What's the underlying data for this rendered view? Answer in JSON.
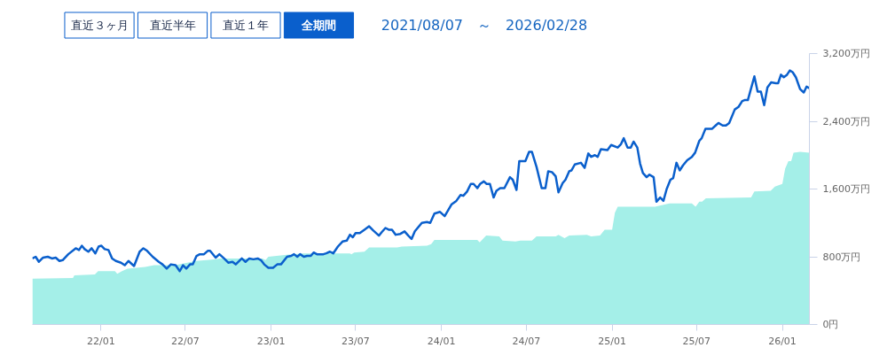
{
  "chart_data": {
    "type": "area",
    "title": "2021/08/07　～　2026/02/28",
    "annotations": [
      "直近３ヶ月",
      "直近半年",
      "直近１年",
      "全期間"
    ],
    "xlim": [
      "2021-08-07",
      "2026-02-28"
    ],
    "xticks": [
      {
        "value": "2022-01-01",
        "label": "22/01"
      },
      {
        "value": "2022-07-01",
        "label": "22/07"
      },
      {
        "value": "2023-01-01",
        "label": "23/01"
      },
      {
        "value": "2023-07-01",
        "label": "23/07"
      },
      {
        "value": "2024-01-01",
        "label": "24/01"
      },
      {
        "value": "2024-07-01",
        "label": "24/07"
      },
      {
        "value": "2025-01-01",
        "label": "25/01"
      },
      {
        "value": "2025-07-01",
        "label": "25/07"
      },
      {
        "value": "2026-01-01",
        "label": "26/01"
      }
    ],
    "ylim": [
      0,
      3200
    ],
    "yticks": [
      {
        "value": 0,
        "label": "0円"
      },
      {
        "value": 800,
        "label": "800万円"
      },
      {
        "value": 1600,
        "label": "1,600万円"
      },
      {
        "value": 2400,
        "label": "2,400万円"
      },
      {
        "value": 3200,
        "label": "3,200万円"
      }
    ],
    "series": [
      {
        "color": "#a4efe8",
        "x": [
          "2021-08-07",
          "2021-11-02",
          "2021-11-05",
          "2021-12-19",
          "2021-12-26",
          "2022-01-31",
          "2022-02-05",
          "2022-02-15",
          "2022-02-27",
          "2022-04-06",
          "2022-04-25",
          "2022-06-09",
          "2022-07-24",
          "2022-09-06",
          "2022-09-12",
          "2022-12-13",
          "2022-12-20",
          "2022-12-26",
          "2023-01-30",
          "2023-03-09",
          "2023-06-19",
          "2023-06-22",
          "2023-06-28",
          "2023-07-20",
          "2023-07-30",
          "2023-09-28",
          "2023-10-08",
          "2023-12-01",
          "2023-12-10",
          "2023-12-17",
          "2024-03-18",
          "2024-03-23",
          "2024-04-06",
          "2024-05-04",
          "2024-05-11",
          "2024-06-08",
          "2024-06-18",
          "2024-07-13",
          "2024-07-23",
          "2024-09-02",
          "2024-09-08",
          "2024-09-21",
          "2024-10-01",
          "2024-11-08",
          "2024-11-17",
          "2024-12-06",
          "2024-12-16",
          "2025-01-01",
          "2025-01-07",
          "2025-01-13",
          "2025-04-03",
          "2025-05-04",
          "2025-06-21",
          "2025-06-29",
          "2025-07-07",
          "2025-07-13",
          "2025-07-21",
          "2025-10-26",
          "2025-11-02",
          "2025-12-07",
          "2025-12-16",
          "2026-01-01",
          "2026-01-07",
          "2026-01-14",
          "2026-01-20",
          "2026-01-25",
          "2026-02-08",
          "2026-02-28"
        ],
        "values": [
          540,
          550,
          580,
          590,
          630,
          630,
          600,
          630,
          660,
          680,
          700,
          700,
          750,
          770,
          780,
          780,
          760,
          800,
          820,
          840,
          840,
          830,
          850,
          860,
          910,
          910,
          920,
          930,
          950,
          1000,
          1000,
          970,
          1050,
          1040,
          990,
          980,
          990,
          990,
          1040,
          1040,
          1060,
          1020,
          1050,
          1060,
          1040,
          1050,
          1120,
          1120,
          1320,
          1390,
          1390,
          1430,
          1430,
          1390,
          1450,
          1450,
          1490,
          1500,
          1570,
          1580,
          1630,
          1660,
          1840,
          1930,
          1930,
          2030,
          2040,
          2030
        ]
      },
      {
        "type": "line",
        "color": "#0a5fcc",
        "x": [
          "2021-08-07",
          "2021-08-14",
          "2021-08-21",
          "2021-08-30",
          "2021-09-09",
          "2021-09-18",
          "2021-09-26",
          "2021-10-04",
          "2021-10-11",
          "2021-10-23",
          "2021-11-08",
          "2021-11-15",
          "2021-11-21",
          "2021-11-27",
          "2021-12-05",
          "2021-12-12",
          "2021-12-20",
          "2021-12-27",
          "2022-01-02",
          "2022-01-09",
          "2022-01-17",
          "2022-01-25",
          "2022-02-02",
          "2022-02-13",
          "2022-02-21",
          "2022-03-01",
          "2022-03-13",
          "2022-03-25",
          "2022-04-02",
          "2022-04-10",
          "2022-04-22",
          "2022-05-05",
          "2022-05-13",
          "2022-05-22",
          "2022-05-31",
          "2022-06-10",
          "2022-06-19",
          "2022-06-26",
          "2022-07-03",
          "2022-07-11",
          "2022-07-17",
          "2022-07-25",
          "2022-08-01",
          "2022-08-10",
          "2022-08-18",
          "2022-08-23",
          "2022-09-04",
          "2022-09-12",
          "2022-09-22",
          "2022-10-01",
          "2022-10-10",
          "2022-10-17",
          "2022-10-30",
          "2022-11-07",
          "2022-11-15",
          "2022-11-24",
          "2022-12-03",
          "2022-12-10",
          "2022-12-17",
          "2022-12-26",
          "2023-01-05",
          "2023-01-14",
          "2023-01-22",
          "2023-02-04",
          "2023-02-13",
          "2023-02-19",
          "2023-02-26",
          "2023-03-04",
          "2023-03-12",
          "2023-03-19",
          "2023-03-27",
          "2023-04-02",
          "2023-04-09",
          "2023-04-23",
          "2023-04-29",
          "2023-05-07",
          "2023-05-14",
          "2023-05-24",
          "2023-06-03",
          "2023-06-12",
          "2023-06-19",
          "2023-06-25",
          "2023-07-01",
          "2023-07-10",
          "2023-07-20",
          "2023-07-30",
          "2023-08-08",
          "2023-08-20",
          "2023-08-26",
          "2023-09-03",
          "2023-09-10",
          "2023-09-17",
          "2023-09-25",
          "2023-10-05",
          "2023-10-14",
          "2023-10-22",
          "2023-10-29",
          "2023-11-05",
          "2023-11-20",
          "2023-12-01",
          "2023-12-08",
          "2023-12-17",
          "2023-12-29",
          "2024-01-08",
          "2024-01-23",
          "2024-02-02",
          "2024-02-11",
          "2024-02-17",
          "2024-02-25",
          "2024-03-04",
          "2024-03-10",
          "2024-03-18",
          "2024-03-24",
          "2024-04-01",
          "2024-04-07",
          "2024-04-14",
          "2024-04-22",
          "2024-04-28",
          "2024-05-06",
          "2024-05-15",
          "2024-05-27",
          "2024-06-02",
          "2024-06-10",
          "2024-06-16",
          "2024-06-29",
          "2024-07-07",
          "2024-07-13",
          "2024-07-23",
          "2024-08-03",
          "2024-08-11",
          "2024-08-17",
          "2024-08-25",
          "2024-09-02",
          "2024-09-08",
          "2024-09-17",
          "2024-09-23",
          "2024-10-01",
          "2024-10-06",
          "2024-10-13",
          "2024-10-26",
          "2024-11-03",
          "2024-11-11",
          "2024-11-17",
          "2024-11-25",
          "2024-12-01",
          "2024-12-08",
          "2024-12-22",
          "2024-12-30",
          "2025-01-13",
          "2025-01-20",
          "2025-01-26",
          "2025-02-03",
          "2025-02-10",
          "2025-02-16",
          "2025-02-24",
          "2025-03-02",
          "2025-03-08",
          "2025-03-16",
          "2025-03-22",
          "2025-03-31",
          "2025-04-06",
          "2025-04-14",
          "2025-04-21",
          "2025-04-28",
          "2025-05-06",
          "2025-05-12",
          "2025-05-19",
          "2025-05-26",
          "2025-06-02",
          "2025-06-11",
          "2025-06-21",
          "2025-06-28",
          "2025-07-07",
          "2025-07-12",
          "2025-07-20",
          "2025-08-03",
          "2025-08-11",
          "2025-08-17",
          "2025-08-26",
          "2025-09-02",
          "2025-09-09",
          "2025-09-21",
          "2025-09-29",
          "2025-10-07",
          "2025-10-12",
          "2025-10-19",
          "2025-11-02",
          "2025-11-09",
          "2025-11-16",
          "2025-11-23",
          "2025-11-30",
          "2025-12-08",
          "2025-12-18",
          "2025-12-23",
          "2025-12-29",
          "2026-01-04",
          "2026-01-11",
          "2026-01-17",
          "2026-01-23",
          "2026-01-30",
          "2026-02-08",
          "2026-02-16",
          "2026-02-22",
          "2026-02-28"
        ],
        "values": [
          780,
          800,
          740,
          790,
          800,
          780,
          790,
          750,
          760,
          830,
          900,
          880,
          930,
          890,
          860,
          900,
          840,
          920,
          930,
          890,
          880,
          780,
          750,
          730,
          700,
          750,
          690,
          860,
          900,
          870,
          800,
          740,
          710,
          660,
          710,
          700,
          630,
          700,
          660,
          710,
          710,
          810,
          830,
          830,
          870,
          870,
          790,
          830,
          780,
          730,
          740,
          710,
          780,
          740,
          780,
          770,
          780,
          760,
          710,
          670,
          670,
          710,
          710,
          800,
          810,
          830,
          800,
          830,
          800,
          810,
          810,
          850,
          830,
          830,
          840,
          860,
          840,
          920,
          980,
          990,
          1060,
          1030,
          1080,
          1080,
          1120,
          1160,
          1110,
          1050,
          1090,
          1140,
          1120,
          1120,
          1060,
          1070,
          1100,
          1050,
          1010,
          1100,
          1200,
          1210,
          1200,
          1310,
          1330,
          1280,
          1420,
          1460,
          1530,
          1520,
          1570,
          1660,
          1660,
          1610,
          1660,
          1690,
          1660,
          1660,
          1500,
          1580,
          1610,
          1610,
          1740,
          1710,
          1590,
          1930,
          1930,
          2040,
          2040,
          1860,
          1610,
          1610,
          1810,
          1800,
          1750,
          1560,
          1670,
          1710,
          1810,
          1820,
          1890,
          1910,
          1850,
          2020,
          1980,
          2000,
          1980,
          2070,
          2060,
          2120,
          2090,
          2130,
          2200,
          2090,
          2090,
          2160,
          2090,
          1900,
          1790,
          1740,
          1770,
          1740,
          1450,
          1500,
          1460,
          1600,
          1710,
          1730,
          1910,
          1820,
          1880,
          1940,
          1980,
          2030,
          2170,
          2200,
          2310,
          2310,
          2350,
          2380,
          2350,
          2350,
          2380,
          2540,
          2570,
          2640,
          2650,
          2650,
          2930,
          2750,
          2750,
          2590,
          2800,
          2860,
          2850,
          2850,
          2950,
          2920,
          2950,
          3000,
          2980,
          2920,
          2780,
          2740,
          2810,
          2790
        ]
      }
    ]
  }
}
